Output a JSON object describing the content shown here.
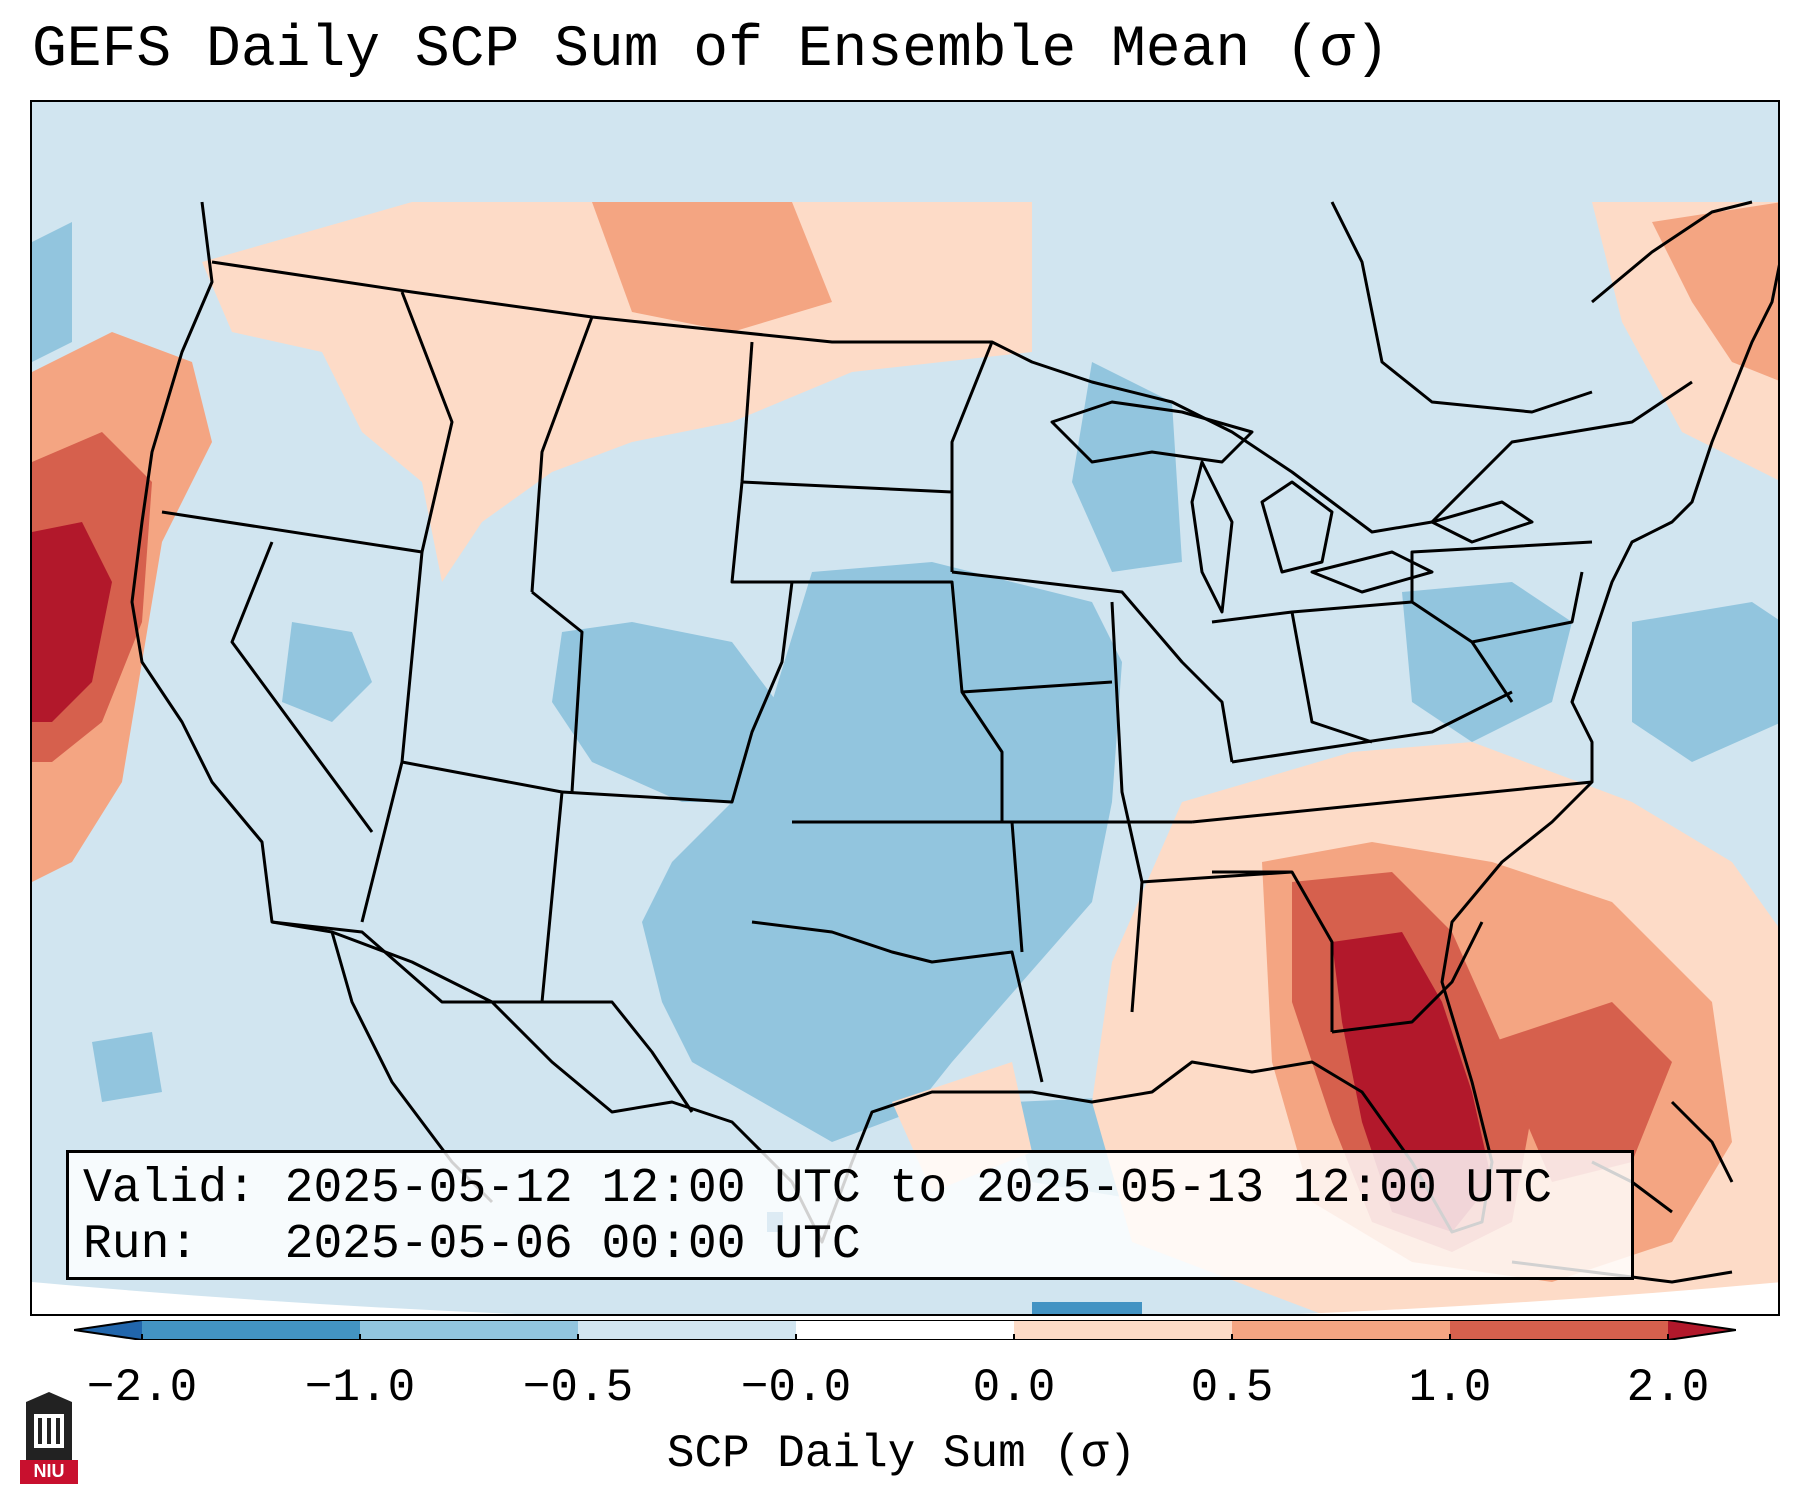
{
  "title": "GEFS Daily SCP Sum of Ensemble Mean (σ)",
  "info": {
    "valid_label": "Valid:",
    "valid_value": "2025-05-12 12:00 UTC to 2025-05-13 12:00 UTC",
    "run_label": "Run:",
    "run_value": "2025-05-06 00:00 UTC"
  },
  "colorbar": {
    "label": "SCP Daily Sum (σ)",
    "ticks": [
      "−2.0",
      "−1.0",
      "−0.5",
      "−0.0",
      "0.0",
      "0.5",
      "1.0",
      "2.0"
    ],
    "colors": [
      "#2166ac",
      "#4393c3",
      "#92c5de",
      "#d1e5f0",
      "#fddbc7",
      "#f4a582",
      "#d6604d",
      "#b2182b"
    ],
    "under_color": "#2166ac",
    "over_color": "#b2182b"
  },
  "logo": {
    "text": "NIU"
  },
  "map": {
    "ocean_color": "#cfe4f0",
    "outline_color": "#000000"
  }
}
